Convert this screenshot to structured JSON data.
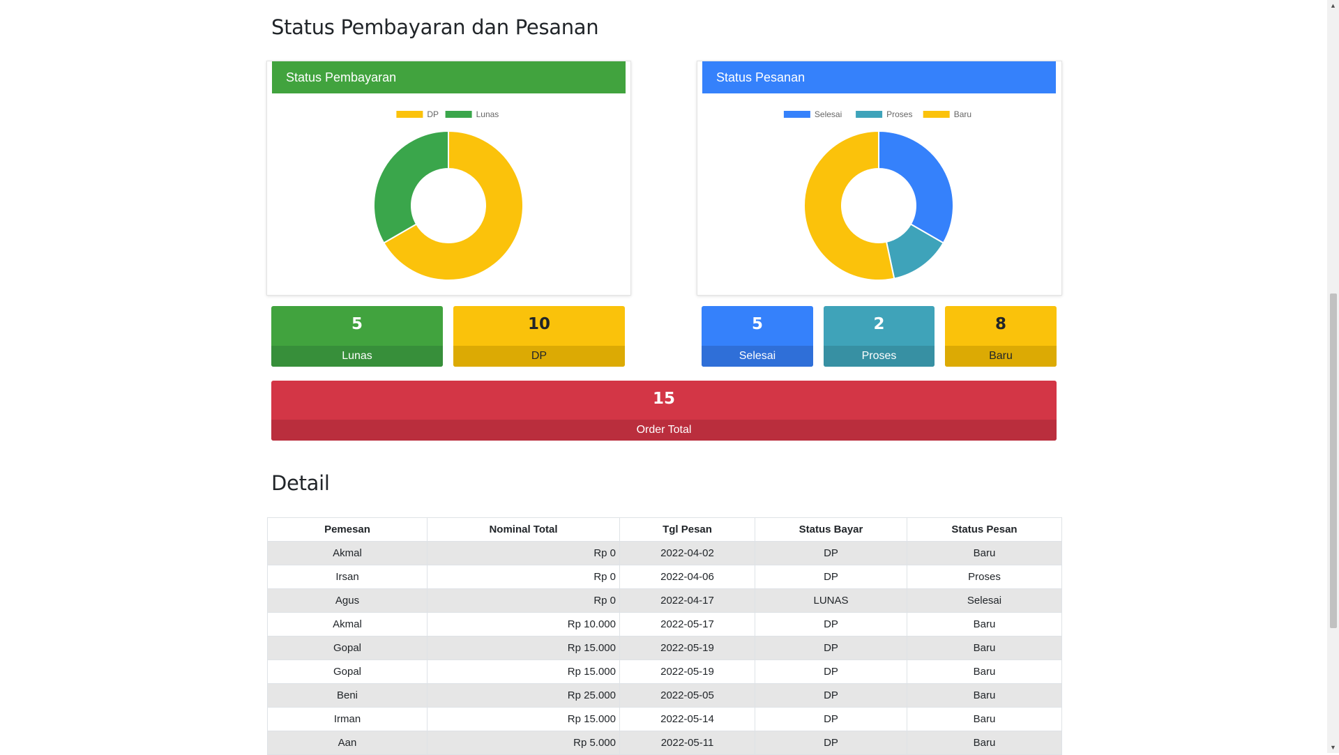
{
  "page": {
    "title": "Status Pembayaran dan Pesanan",
    "detail_title": "Detail"
  },
  "payment_card": {
    "header": "Status Pembayaran",
    "header_color": "#41a33e"
  },
  "order_card": {
    "header": "Status Pesanan",
    "header_color": "#3581fb"
  },
  "chart_data": [
    {
      "type": "pie",
      "variant": "doughnut",
      "title": "",
      "legend_position": "top",
      "categories": [
        "DP",
        "Lunas"
      ],
      "values": [
        10,
        5
      ],
      "colors": [
        "#fbc20b",
        "#3aa64b"
      ]
    },
    {
      "type": "pie",
      "variant": "doughnut",
      "title": "",
      "legend_position": "top",
      "categories": [
        "Selesai",
        "Proses",
        "Baru"
      ],
      "values": [
        5,
        2,
        8
      ],
      "colors": [
        "#3581fb",
        "#3ea3ba",
        "#fbc20b"
      ]
    }
  ],
  "stats": {
    "lunas": {
      "value": "5",
      "label": "Lunas"
    },
    "dp": {
      "value": "10",
      "label": "DP"
    },
    "selesai": {
      "value": "5",
      "label": "Selesai"
    },
    "proses": {
      "value": "2",
      "label": "Proses"
    },
    "baru": {
      "value": "8",
      "label": "Baru"
    },
    "total": {
      "value": "15",
      "label": "Order Total"
    }
  },
  "colors": {
    "green": "#41a33e",
    "green_dark": "#378f3a",
    "yellow": "#fac20b",
    "yellow_dark": "#dcaa04",
    "blue": "#3581fb",
    "blue_dark": "#2f6fd8",
    "teal": "#3fa3b9",
    "teal_dark": "#3790a3",
    "red": "#d33646",
    "red_dark": "#ba2e3d"
  },
  "table": {
    "headers": [
      "Pemesan",
      "Nominal Total",
      "Tgl Pesan",
      "Status Bayar",
      "Status Pesan"
    ],
    "rows": [
      [
        "Akmal",
        "Rp 0",
        "2022-04-02",
        "DP",
        "Baru"
      ],
      [
        "Irsan",
        "Rp 0",
        "2022-04-06",
        "DP",
        "Proses"
      ],
      [
        "Agus",
        "Rp 0",
        "2022-04-17",
        "LUNAS",
        "Selesai"
      ],
      [
        "Akmal",
        "Rp 10.000",
        "2022-05-17",
        "DP",
        "Baru"
      ],
      [
        "Gopal",
        "Rp 15.000",
        "2022-05-19",
        "DP",
        "Baru"
      ],
      [
        "Gopal",
        "Rp 15.000",
        "2022-05-19",
        "DP",
        "Baru"
      ],
      [
        "Beni",
        "Rp 25.000",
        "2022-05-05",
        "DP",
        "Baru"
      ],
      [
        "Irman",
        "Rp 15.000",
        "2022-05-14",
        "DP",
        "Baru"
      ],
      [
        "Aan",
        "Rp 5.000",
        "2022-05-11",
        "DP",
        "Baru"
      ]
    ]
  },
  "scrollbar": {
    "up_icon": "triangle-up",
    "down_icon": "triangle-down"
  }
}
